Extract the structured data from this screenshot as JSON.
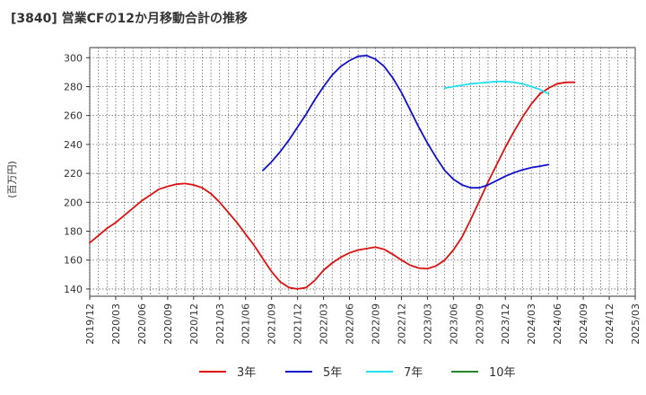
{
  "title": "[3840]  営業CFの12か月移動合計の推移",
  "chart_data": {
    "type": "line",
    "ylabel": "(百万円)",
    "ylim": [
      135,
      307
    ],
    "yticks": [
      140,
      160,
      180,
      200,
      220,
      240,
      260,
      280,
      300
    ],
    "xlim": [
      "2019-12",
      "2025-03"
    ],
    "xticks": [
      "2019/12",
      "2020/03",
      "2020/06",
      "2020/09",
      "2020/12",
      "2021/03",
      "2021/06",
      "2021/09",
      "2021/12",
      "2022/03",
      "2022/06",
      "2022/09",
      "2022/12",
      "2023/03",
      "2023/06",
      "2023/09",
      "2023/12",
      "2024/03",
      "2024/06",
      "2024/09",
      "2024/12",
      "2025/03"
    ],
    "grid": true,
    "legend_position": "bottom",
    "series": [
      {
        "name": "3年",
        "color": "#dd1111",
        "points": [
          [
            "2019-12",
            172
          ],
          [
            "2020-01",
            177
          ],
          [
            "2020-02",
            182
          ],
          [
            "2020-03",
            186
          ],
          [
            "2020-04",
            191
          ],
          [
            "2020-05",
            196
          ],
          [
            "2020-06",
            201
          ],
          [
            "2020-07",
            205
          ],
          [
            "2020-08",
            209
          ],
          [
            "2020-09",
            211
          ],
          [
            "2020-10",
            212.5
          ],
          [
            "2020-11",
            213
          ],
          [
            "2020-12",
            212
          ],
          [
            "2021-01",
            210
          ],
          [
            "2021-02",
            206
          ],
          [
            "2021-03",
            200
          ],
          [
            "2021-04",
            193
          ],
          [
            "2021-05",
            186
          ],
          [
            "2021-06",
            178
          ],
          [
            "2021-07",
            170
          ],
          [
            "2021-08",
            161
          ],
          [
            "2021-09",
            152
          ],
          [
            "2021-10",
            145
          ],
          [
            "2021-11",
            141
          ],
          [
            "2021-12",
            140
          ],
          [
            "2022-01",
            141
          ],
          [
            "2022-02",
            146
          ],
          [
            "2022-03",
            153
          ],
          [
            "2022-04",
            158
          ],
          [
            "2022-05",
            162
          ],
          [
            "2022-06",
            165
          ],
          [
            "2022-07",
            167
          ],
          [
            "2022-08",
            168
          ],
          [
            "2022-09",
            169
          ],
          [
            "2022-10",
            167.5
          ],
          [
            "2022-11",
            164
          ],
          [
            "2022-12",
            160
          ],
          [
            "2023-01",
            156.5
          ],
          [
            "2023-02",
            154.5
          ],
          [
            "2023-03",
            154
          ],
          [
            "2023-04",
            156
          ],
          [
            "2023-05",
            160
          ],
          [
            "2023-06",
            167
          ],
          [
            "2023-07",
            176
          ],
          [
            "2023-08",
            188
          ],
          [
            "2023-09",
            201
          ],
          [
            "2023-10",
            214
          ],
          [
            "2023-11",
            226
          ],
          [
            "2023-12",
            238
          ],
          [
            "2024-01",
            249
          ],
          [
            "2024-02",
            259
          ],
          [
            "2024-03",
            268
          ],
          [
            "2024-04",
            275
          ],
          [
            "2024-05",
            279
          ],
          [
            "2024-06",
            282
          ],
          [
            "2024-07",
            283
          ],
          [
            "2024-08",
            283
          ]
        ]
      },
      {
        "name": "5年",
        "color": "#1111cc",
        "points": [
          [
            "2021-08",
            222
          ],
          [
            "2021-09",
            228
          ],
          [
            "2021-10",
            235
          ],
          [
            "2021-11",
            243
          ],
          [
            "2021-12",
            252
          ],
          [
            "2022-01",
            261
          ],
          [
            "2022-02",
            271
          ],
          [
            "2022-03",
            280
          ],
          [
            "2022-04",
            288
          ],
          [
            "2022-05",
            294
          ],
          [
            "2022-06",
            298
          ],
          [
            "2022-07",
            301
          ],
          [
            "2022-08",
            301.5
          ],
          [
            "2022-09",
            299
          ],
          [
            "2022-10",
            294
          ],
          [
            "2022-11",
            286
          ],
          [
            "2022-12",
            276
          ],
          [
            "2023-01",
            264
          ],
          [
            "2023-02",
            252
          ],
          [
            "2023-03",
            241
          ],
          [
            "2023-04",
            231
          ],
          [
            "2023-05",
            222
          ],
          [
            "2023-06",
            216
          ],
          [
            "2023-07",
            212
          ],
          [
            "2023-08",
            210
          ],
          [
            "2023-09",
            210
          ],
          [
            "2023-10",
            212
          ],
          [
            "2023-11",
            215
          ],
          [
            "2023-12",
            218
          ],
          [
            "2024-01",
            220.5
          ],
          [
            "2024-02",
            222.5
          ],
          [
            "2024-03",
            224
          ],
          [
            "2024-04",
            225
          ],
          [
            "2024-05",
            226
          ]
        ]
      },
      {
        "name": "7年",
        "color": "#22e0f0",
        "points": [
          [
            "2023-05",
            279
          ],
          [
            "2023-06",
            280
          ],
          [
            "2023-07",
            281
          ],
          [
            "2023-08",
            282
          ],
          [
            "2023-09",
            282.5
          ],
          [
            "2023-10",
            283
          ],
          [
            "2023-11",
            283.5
          ],
          [
            "2023-12",
            283.5
          ],
          [
            "2024-01",
            283
          ],
          [
            "2024-02",
            282
          ],
          [
            "2024-03",
            280
          ],
          [
            "2024-04",
            278
          ],
          [
            "2024-05",
            275
          ]
        ]
      },
      {
        "name": "10年",
        "color": "#22882a",
        "points": []
      }
    ]
  }
}
